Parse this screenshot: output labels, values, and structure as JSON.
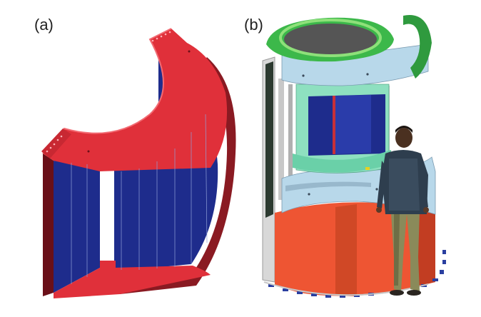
{
  "panels": [
    {
      "label": "(a)"
    },
    {
      "label": "(b)"
    }
  ],
  "colors": {
    "frame_red": "#e0303a",
    "frame_red_dark": "#8a1a22",
    "panel_blue": "#1e2c8c",
    "panel_blue_dark": "#101a5a",
    "ring_green": "#3cb84a",
    "ring_green_light": "#8ee07a",
    "shell_lightblue": "#b8d8ea",
    "teal_band": "#8ee0c0",
    "base_orange": "#ee5533",
    "base_shadow": "#c23d22",
    "floor_blue_tick": "#2a3fa0",
    "pillar_grey": "#c8c8c8"
  },
  "icons": [
    "human-figure",
    "bolt-dots"
  ]
}
